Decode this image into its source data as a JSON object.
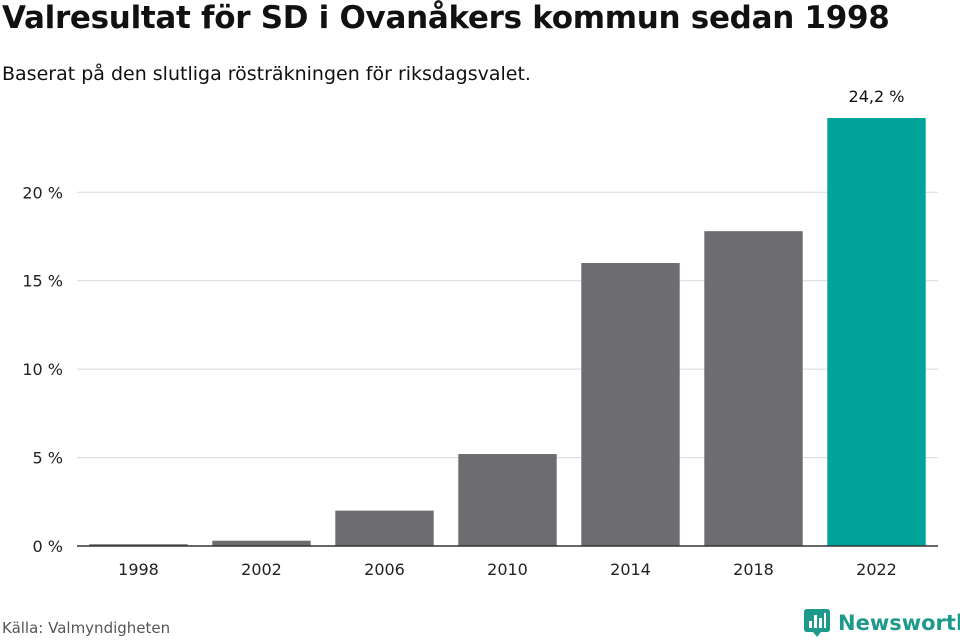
{
  "header": {
    "title": "Valresultat för SD i Ovanåkers kommun sedan 1998",
    "subtitle": "Baserat på den slutliga rösträkningen för riksdagsvalet."
  },
  "footer": {
    "source": "Källa: Valmyndigheten",
    "brand_name": "Newsworthy",
    "brand_icon": "newsworthy-logo-icon"
  },
  "colors": {
    "bar_default": "#6d6c71",
    "bar_highlight": "#00a49a",
    "brand": "#1d9a8c",
    "grid": "#d9d9d9",
    "axis": "#333333"
  },
  "chart_data": {
    "type": "bar",
    "title": "Valresultat för SD i Ovanåkers kommun sedan 1998",
    "subtitle": "Baserat på den slutliga rösträkningen för riksdagsvalet.",
    "xlabel": "",
    "ylabel": "",
    "categories": [
      "1998",
      "2002",
      "2006",
      "2010",
      "2014",
      "2018",
      "2022"
    ],
    "values": [
      0.1,
      0.3,
      2.0,
      5.2,
      16.0,
      17.8,
      24.2
    ],
    "ylim": [
      0,
      24.2
    ],
    "yticks": [
      0,
      5,
      10,
      15,
      20
    ],
    "ytick_labels": [
      "0 %",
      "5 %",
      "10 %",
      "15 %",
      "20 %"
    ],
    "highlight_index": 6,
    "data_labels": [
      {
        "index": 6,
        "text": "24,2 %"
      }
    ],
    "grid": true,
    "legend": "none"
  }
}
